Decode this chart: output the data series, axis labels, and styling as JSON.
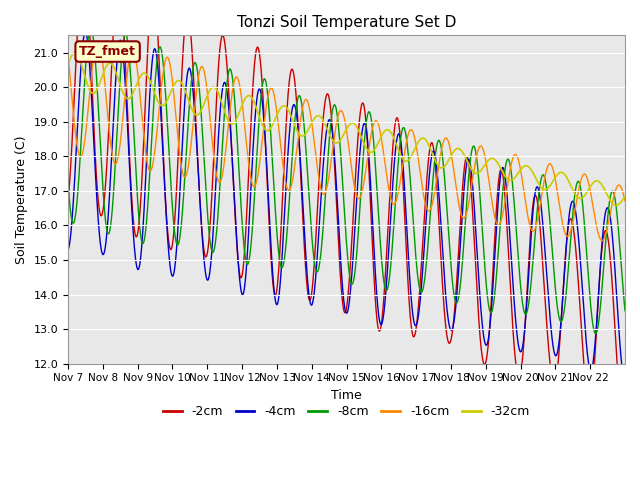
{
  "title": "Tonzi Soil Temperature Set D",
  "xlabel": "Time",
  "ylabel": "Soil Temperature (C)",
  "ylim": [
    12.0,
    21.5
  ],
  "annotation": "TZ_fmet",
  "legend": [
    "-2cm",
    "-4cm",
    "-8cm",
    "-16cm",
    "-32cm"
  ],
  "colors": [
    "#cc0000",
    "#0000cc",
    "#009900",
    "#ff8800",
    "#cccc00"
  ],
  "x_tick_labels": [
    "Nov 7",
    "Nov 8",
    "Nov 9",
    "Nov 10",
    "Nov 11",
    "Nov 12",
    "Nov 13",
    "Nov 14",
    "Nov 15",
    "Nov 16",
    "Nov 17",
    "Nov 18",
    "Nov 19",
    "Nov 20",
    "Nov 21",
    "Nov 22"
  ],
  "background_color": "#e8e8e8"
}
